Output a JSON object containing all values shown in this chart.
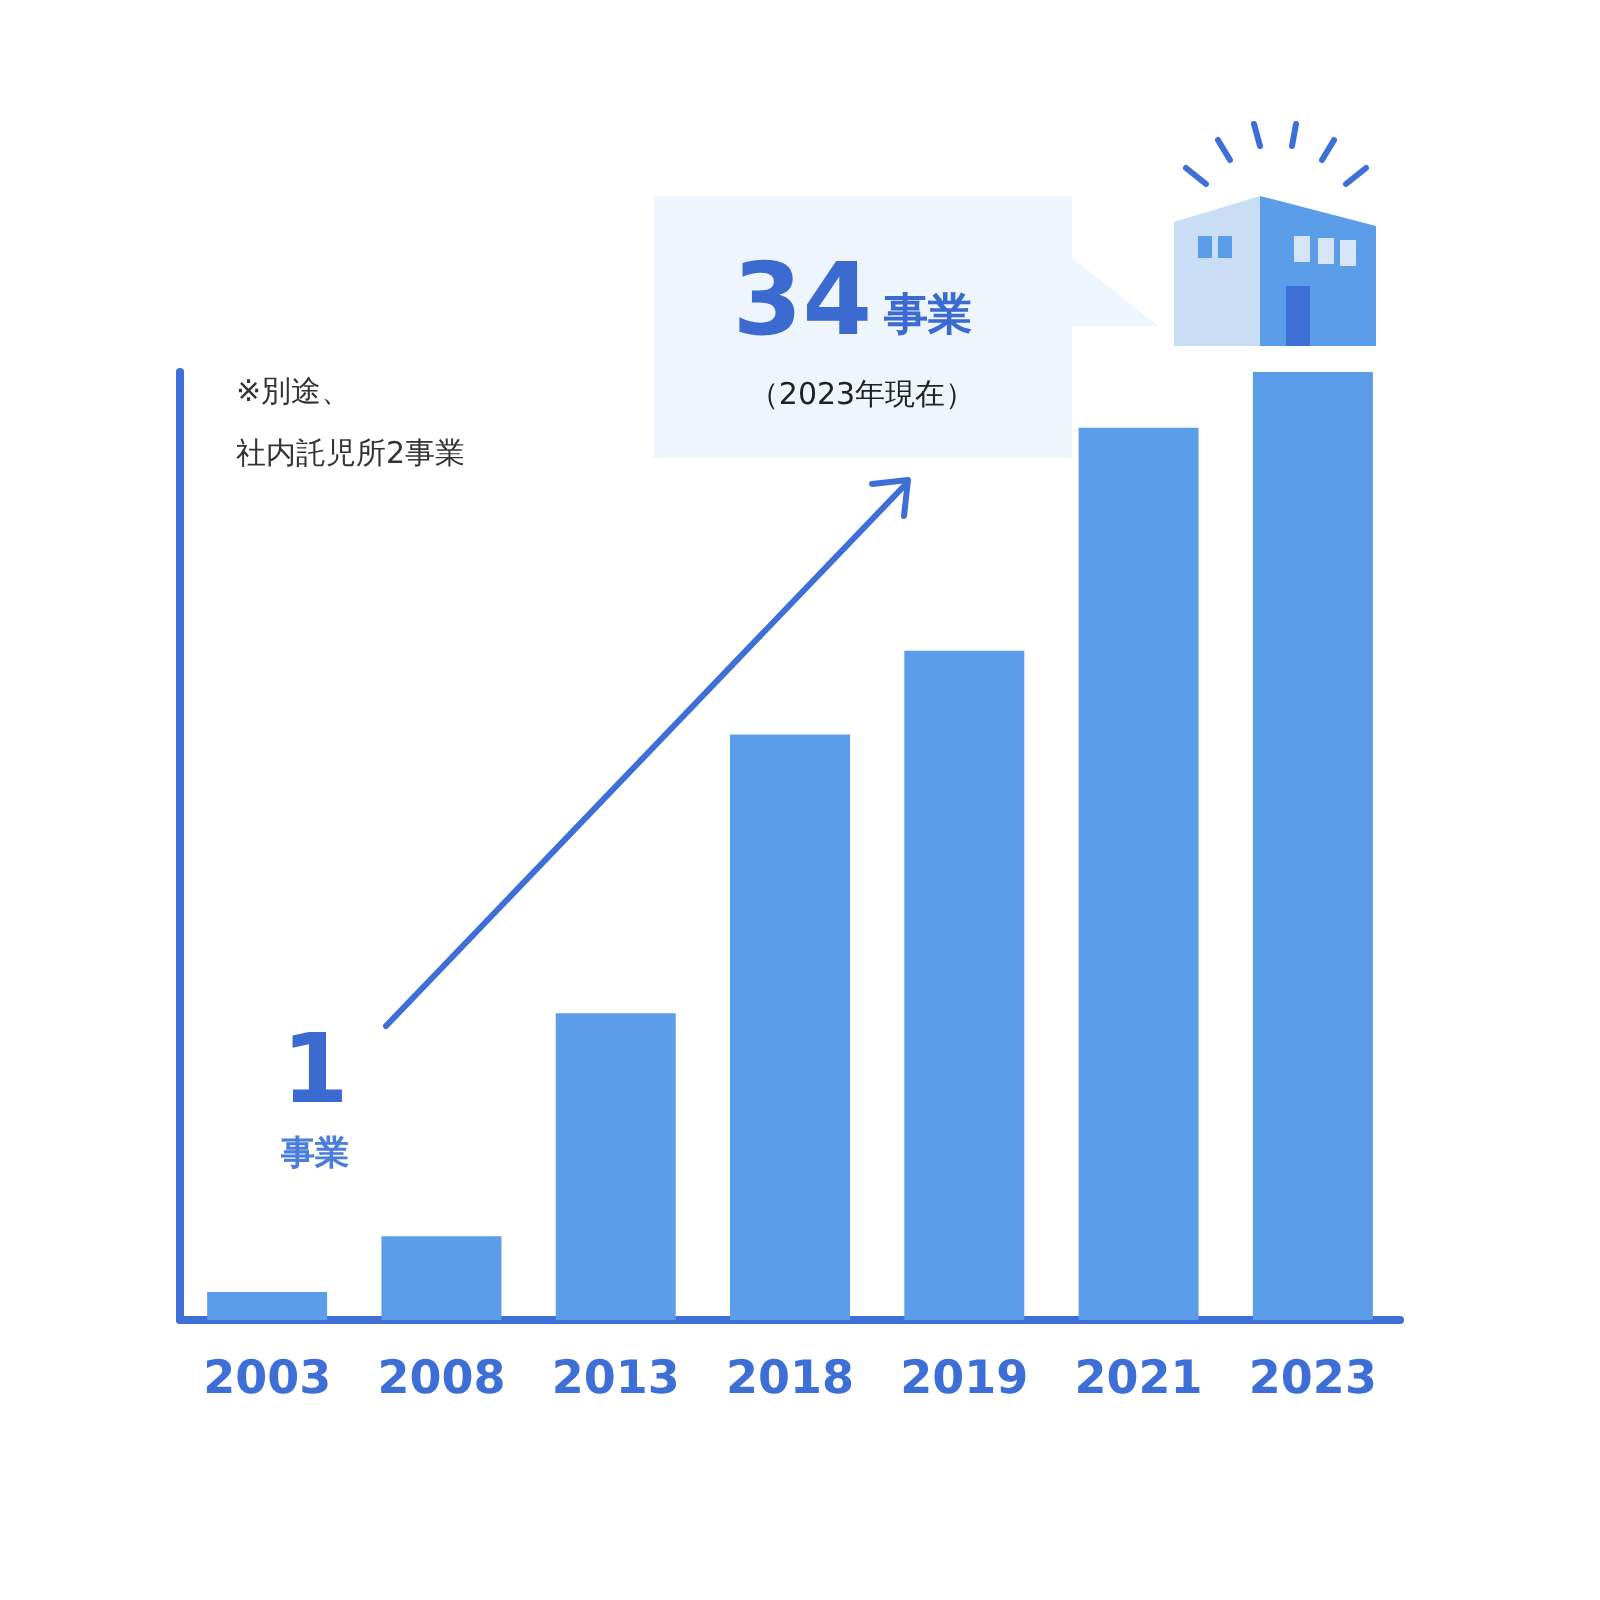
{
  "chart_data": {
    "type": "bar",
    "categories": [
      "2003",
      "2008",
      "2013",
      "2018",
      "2019",
      "2021",
      "2023"
    ],
    "values": [
      1,
      3,
      11,
      21,
      24,
      32,
      34
    ],
    "color": "#5b9de8",
    "value_labels": [
      "1",
      null,
      null,
      null,
      null,
      null,
      null
    ],
    "ylim": [
      0,
      34
    ],
    "tick_labels": "x",
    "annotations": [
      "事業",
      "34",
      "事業",
      "（2023年現在）",
      "※別途、",
      "社内託児所2事業"
    ]
  }
}
